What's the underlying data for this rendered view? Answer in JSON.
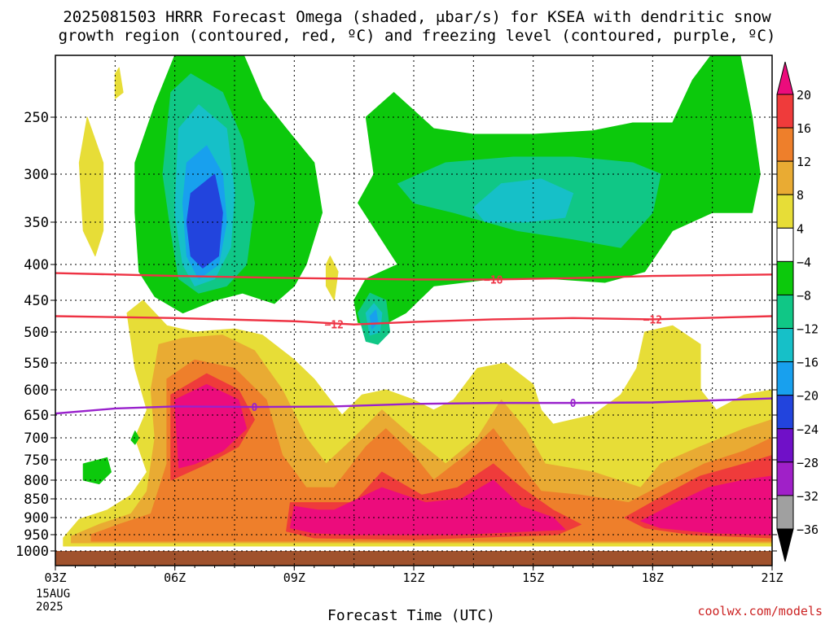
{
  "title_line1": "2025081503 HRRR Forecast Omega (shaded, μbar/s) for KSEA with dendritic snow",
  "title_line2": "growth region (contoured, red, ºC) and freezing level (contoured, purple, ºC)",
  "watermark": "coolwx.com/models",
  "x_axis_title": "Forecast Time (UTC)",
  "date_label_day": "15AUG",
  "date_label_year": "2025",
  "chart_data": {
    "type": "heatmap",
    "x_unit": "forecast hour (UTC)",
    "x_range": [
      3,
      21
    ],
    "x_ticks": [
      {
        "value": 3,
        "label": "03Z"
      },
      {
        "value": 6,
        "label": "06Z"
      },
      {
        "value": 9,
        "label": "09Z"
      },
      {
        "value": 12,
        "label": "12Z"
      },
      {
        "value": 15,
        "label": "15Z"
      },
      {
        "value": 18,
        "label": "18Z"
      },
      {
        "value": 21,
        "label": "21Z"
      }
    ],
    "y_ticks": [
      250,
      300,
      350,
      400,
      450,
      500,
      550,
      600,
      650,
      700,
      750,
      800,
      850,
      900,
      950,
      1000
    ],
    "y_range": [
      1000,
      200
    ],
    "colorbar": {
      "levels": [
        20,
        16,
        12,
        8,
        4,
        -4,
        -8,
        -12,
        -16,
        -20,
        -24,
        -28,
        -32,
        -36
      ],
      "colors": [
        "#ec0c7c",
        "#ef3b3b",
        "#ee7f2b",
        "#e9ab33",
        "#e7dd37",
        "#ffffff",
        "#0cc90c",
        "#10c786",
        "#16c0c8",
        "#18a0ee",
        "#2244dd",
        "#7010c8",
        "#a020c8",
        "#a0a0a0",
        "#000000"
      ]
    },
    "contours": [
      {
        "name": "-18",
        "color": "#ee3344",
        "points": [
          [
            3,
            412
          ],
          [
            6,
            416
          ],
          [
            9,
            419
          ],
          [
            12,
            421
          ],
          [
            14,
            421
          ],
          [
            16,
            419
          ],
          [
            18,
            416
          ],
          [
            21,
            414
          ]
        ],
        "label": {
          "x": 14,
          "p": 421
        }
      },
      {
        "name": "-12",
        "color": "#ee3344",
        "points": [
          [
            3,
            475
          ],
          [
            6,
            478
          ],
          [
            9,
            483
          ],
          [
            10.5,
            488
          ],
          [
            12,
            484
          ],
          [
            14,
            480
          ],
          [
            16,
            478
          ],
          [
            18,
            480
          ],
          [
            21,
            475
          ]
        ],
        "labels": [
          {
            "x": 10,
            "p": 488
          },
          {
            "x": 18,
            "p": 480
          }
        ]
      },
      {
        "name": "0",
        "color": "#9922cc",
        "points": [
          [
            3,
            647
          ],
          [
            4.5,
            637
          ],
          [
            6,
            633
          ],
          [
            8,
            634
          ],
          [
            10,
            633
          ],
          [
            12,
            628
          ],
          [
            14,
            626
          ],
          [
            16,
            626
          ],
          [
            18,
            625
          ],
          [
            21,
            617
          ]
        ],
        "labels": [
          {
            "x": 8,
            "p": 634
          },
          {
            "x": 16,
            "p": 626
          }
        ]
      }
    ],
    "features": [
      {
        "level": -4,
        "kind": "ascent",
        "center": [
          6.8,
          330
        ],
        "note": "upper-level ascent core, min near -24"
      },
      {
        "level": -8,
        "kind": "ascent",
        "center": [
          14.8,
          330
        ]
      },
      {
        "level": -16,
        "kind": "ascent",
        "center": [
          11.0,
          470
        ]
      },
      {
        "level": 20,
        "kind": "descent",
        "center": [
          7.0,
          630
        ]
      },
      {
        "level": 20,
        "kind": "descent",
        "center": [
          12.5,
          880
        ]
      },
      {
        "level": 20,
        "kind": "descent",
        "center": [
          19.5,
          870
        ]
      }
    ]
  }
}
